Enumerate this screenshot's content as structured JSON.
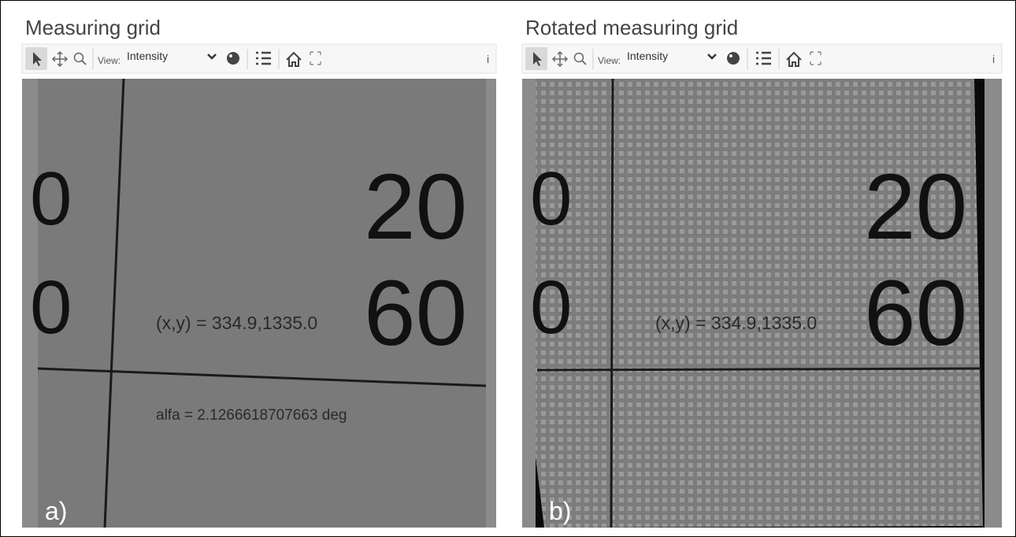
{
  "panels": [
    {
      "title": "Measuring grid",
      "toolbar": {
        "view_label": "View:",
        "view_value": "Intensity",
        "info": "i"
      },
      "image": {
        "digits": [
          "0",
          "0",
          "20",
          "60"
        ],
        "coordinates": "(x,y) = 334.9,1335.0",
        "angle": "alfa = 2.1266618707663 deg",
        "label": "a)"
      }
    },
    {
      "title": "Rotated measuring grid",
      "toolbar": {
        "view_label": "View:",
        "view_value": "Intensity",
        "info": "i"
      },
      "image": {
        "digits": [
          "0",
          "0",
          "20",
          "60"
        ],
        "coordinates": "(x,y) = 334.9,1335.0",
        "label": "b)"
      }
    }
  ]
}
